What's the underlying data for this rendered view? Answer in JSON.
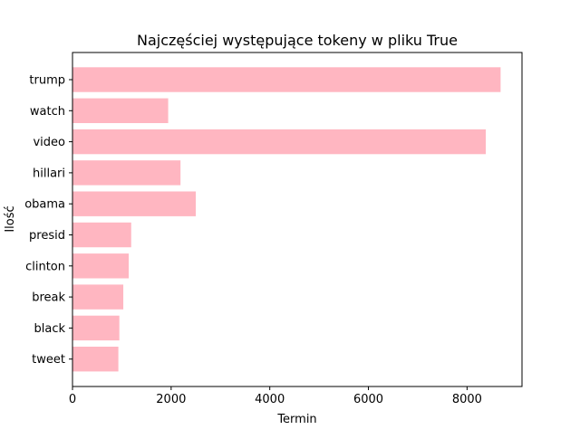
{
  "chart_data": {
    "type": "bar",
    "orientation": "horizontal",
    "title": "Najczęściej występujące tokeny w pliku True",
    "xlabel": "Termin",
    "ylabel": "Ilość",
    "categories": [
      "trump",
      "watch",
      "video",
      "hillari",
      "obama",
      "presid",
      "clinton",
      "break",
      "black",
      "tweet"
    ],
    "values": [
      8680,
      1940,
      8380,
      2190,
      2500,
      1190,
      1140,
      1030,
      950,
      930
    ],
    "xlim": [
      0,
      9114
    ],
    "xticks": [
      0,
      2000,
      4000,
      6000,
      8000
    ],
    "xtick_labels": [
      "0",
      "2000",
      "4000",
      "6000",
      "8000"
    ],
    "grid": false,
    "bar_color": "#ffb6c1"
  }
}
